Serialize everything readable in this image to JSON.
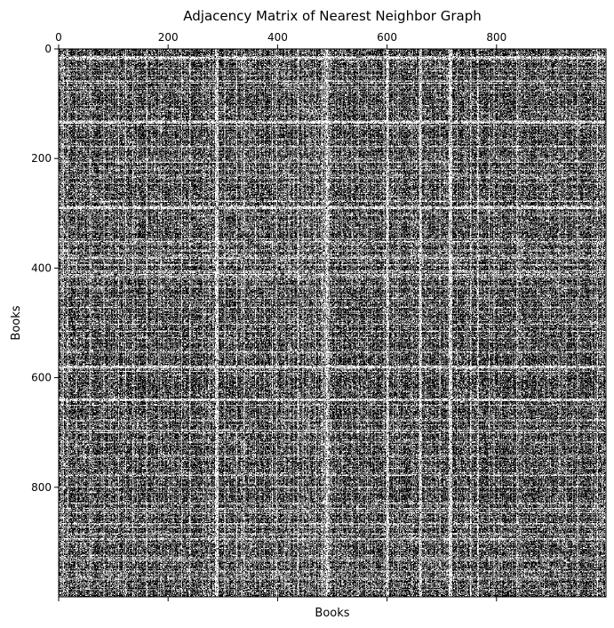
{
  "chart_data": {
    "type": "heatmap",
    "subtype": "spy-plot (binary adjacency matrix)",
    "title": "Adjacency Matrix of Nearest Neighbor Graph",
    "xlabel": "Books",
    "ylabel": "Books",
    "x_axis_position": "top",
    "x_ticks": [
      0,
      200,
      400,
      600,
      800
    ],
    "x_ticklabels": [
      "0",
      "200",
      "400",
      "600",
      "800"
    ],
    "y_ticks": [
      0,
      200,
      400,
      600,
      800
    ],
    "y_ticklabels": [
      "0",
      "200",
      "400",
      "600",
      "800"
    ],
    "xlim": [
      0,
      1000
    ],
    "ylim": [
      1000,
      0
    ],
    "matrix_size": 1000,
    "colormap": {
      "nonzero": "#000000",
      "zero": "#ffffff"
    },
    "approx_density": 0.75,
    "notable_empty_rows": [
      16,
      133,
      289,
      580,
      640
    ],
    "notable_empty_cols": [
      289,
      490,
      600,
      660,
      715
    ],
    "grid": false,
    "legend": "none"
  }
}
